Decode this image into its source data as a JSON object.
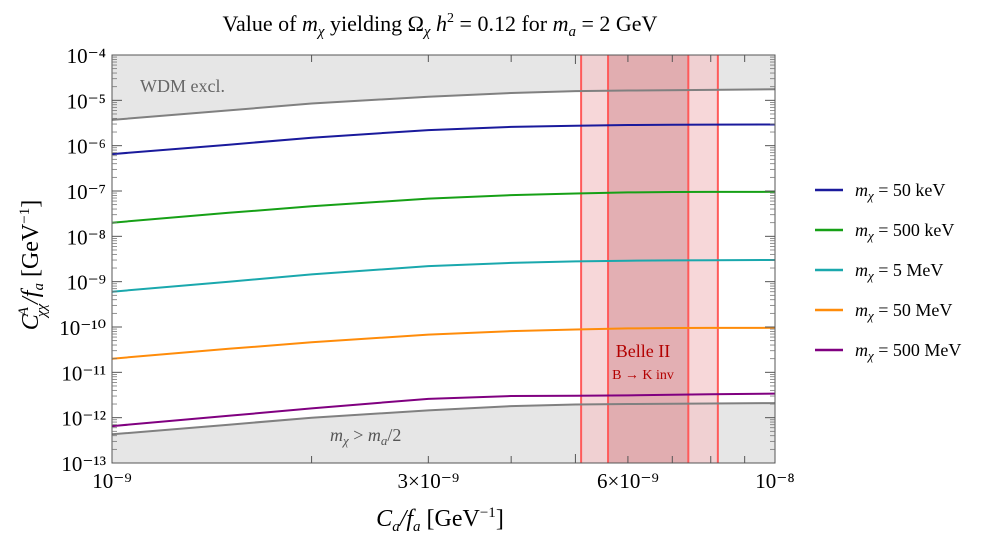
{
  "chart_data": {
    "type": "line",
    "title": "Value of m_χ yielding Ω_χ h^2 = 0.12 for m_a = 2 GeV",
    "xlabel": "C_a/f_a [GeV^-1]",
    "ylabel": "C^A_χχ/f_a [GeV^-1]",
    "xscale": "log",
    "yscale": "log",
    "xlim": [
      1e-09,
      1e-08
    ],
    "ylim": [
      1e-13,
      0.0001
    ],
    "x_tick_labels": [
      {
        "value": 1e-09,
        "label": "10⁻⁹"
      },
      {
        "value": 3e-09,
        "label": "3×10⁻⁹"
      },
      {
        "value": 6e-09,
        "label": "6×10⁻⁹"
      },
      {
        "value": 1e-08,
        "label": "10⁻⁸"
      }
    ],
    "y_tick_labels": [
      {
        "value": 1e-13,
        "label": "10⁻¹³"
      },
      {
        "value": 1e-12,
        "label": "10⁻¹²"
      },
      {
        "value": 1e-11,
        "label": "10⁻¹¹"
      },
      {
        "value": 1e-10,
        "label": "10⁻¹⁰"
      },
      {
        "value": 1e-09,
        "label": "10⁻⁹"
      },
      {
        "value": 1e-08,
        "label": "10⁻⁸"
      },
      {
        "value": 1e-07,
        "label": "10⁻⁷"
      },
      {
        "value": 1e-06,
        "label": "10⁻⁶"
      },
      {
        "value": 1e-05,
        "label": "10⁻⁵"
      },
      {
        "value": 0.0001,
        "label": "10⁻⁴"
      }
    ],
    "grid": false,
    "legend_position": "right",
    "series": [
      {
        "name": "m_χ = 50 keV",
        "color": "#1a1a9c",
        "x": [
          1e-09,
          1.5e-09,
          2e-09,
          3e-09,
          4e-09,
          5e-09,
          6e-09,
          7e-09,
          8e-09,
          1e-08
        ],
        "y": [
          6.5e-07,
          1.05e-06,
          1.5e-06,
          2.2e-06,
          2.6e-06,
          2.75e-06,
          2.85e-06,
          2.9e-06,
          2.92e-06,
          2.93e-06
        ]
      },
      {
        "name": "m_χ = 500 keV",
        "color": "#16a016",
        "x": [
          1e-09,
          1.5e-09,
          2e-09,
          3e-09,
          4e-09,
          5e-09,
          6e-09,
          7e-09,
          8e-09,
          1e-08
        ],
        "y": [
          2e-08,
          3.3e-08,
          4.6e-08,
          6.8e-08,
          8.1e-08,
          8.8e-08,
          9.3e-08,
          9.5e-08,
          9.55e-08,
          9.6e-08
        ]
      },
      {
        "name": "m_χ = 5 MeV",
        "color": "#1aa8ad",
        "x": [
          1e-09,
          1.5e-09,
          2e-09,
          3e-09,
          4e-09,
          5e-09,
          6e-09,
          7e-09,
          8e-09,
          1e-08
        ],
        "y": [
          6e-10,
          1e-09,
          1.45e-09,
          2.2e-09,
          2.6e-09,
          2.8e-09,
          2.9e-09,
          2.95e-09,
          2.97e-09,
          3e-09
        ]
      },
      {
        "name": "m_χ = 50 MeV",
        "color": "#ff8c0a",
        "x": [
          1e-09,
          1.5e-09,
          2e-09,
          3e-09,
          4e-09,
          5e-09,
          6e-09,
          7e-09,
          8e-09,
          1e-08
        ],
        "y": [
          2e-11,
          3.3e-11,
          4.6e-11,
          6.8e-11,
          8.1e-11,
          8.8e-11,
          9.3e-11,
          9.5e-11,
          9.55e-11,
          9.6e-11
        ]
      },
      {
        "name": "m_χ = 500 MeV",
        "color": "#800080",
        "x": [
          1e-09,
          1.5e-09,
          2e-09,
          2.5e-09,
          3e-09,
          4e-09,
          5e-09,
          6e-09,
          7e-09,
          8e-09,
          1e-08
        ],
        "y": [
          6.5e-13,
          1.1e-12,
          1.6e-12,
          2.1e-12,
          2.6e-12,
          3e-12,
          3.05e-12,
          3.1e-12,
          3.2e-12,
          3.3e-12,
          3.4e-12
        ]
      }
    ],
    "boundaries": [
      {
        "color": "#808080",
        "x": [
          1e-09,
          1.5e-09,
          2e-09,
          3e-09,
          4e-09,
          5e-09,
          6e-09,
          8e-09,
          1e-08
        ],
        "y": [
          3.7e-06,
          6e-06,
          8.5e-06,
          1.2e-05,
          1.45e-05,
          1.6e-05,
          1.65e-05,
          1.7e-05,
          1.75e-05
        ]
      },
      {
        "color": "#808080",
        "x": [
          1e-09,
          1.5e-09,
          2e-09,
          3e-09,
          4e-09,
          5e-09,
          6e-09,
          8e-09,
          1e-08
        ],
        "y": [
          4.3e-13,
          7e-13,
          1e-12,
          1.45e-12,
          1.8e-12,
          1.95e-12,
          2e-12,
          2.05e-12,
          2.1e-12
        ]
      }
    ],
    "shaded_regions": [
      {
        "label": "WDM excl.",
        "color": "#e6e6e6",
        "edge": "upper"
      },
      {
        "label": "m_χ > m_a/2",
        "color": "#e6e6e6",
        "edge": "lower"
      }
    ],
    "bands": [
      {
        "x_range": [
          5.1e-09,
          8.2e-09
        ],
        "fill": "#f3c6c9",
        "edge": "#ff5a5a"
      },
      {
        "x_range": [
          5.6e-09,
          7.4e-09
        ],
        "fill": "#d99a9e",
        "edge": "#ff5a5a"
      }
    ],
    "annotation": {
      "line1": "Belle II",
      "line2": "B → K inv",
      "color": "#b30000"
    }
  }
}
